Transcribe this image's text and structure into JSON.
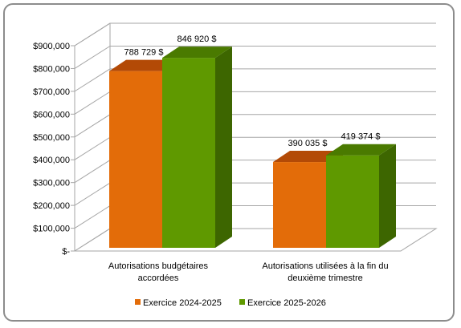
{
  "chart_data": {
    "type": "bar",
    "categories": [
      [
        "Autorisations budgétaires",
        "accordées"
      ],
      [
        "Autorisations utilisées à la fin du",
        "deuxième trimestre"
      ]
    ],
    "series": [
      {
        "name": "Exercice 2024-2025",
        "values": [
          788729,
          390035
        ],
        "labels": [
          "788 729 $",
          "390 035 $"
        ],
        "front": "#e36c09",
        "top": "#b34a06",
        "side": "#a34304"
      },
      {
        "name": "Exercice 2025-2026",
        "values": [
          846920,
          419374
        ],
        "labels": [
          "846 920 $",
          "419 374 $"
        ],
        "front": "#5f9900",
        "top": "#4a7a00",
        "side": "#3d6600"
      }
    ],
    "yticks": [
      0,
      100000,
      200000,
      300000,
      400000,
      500000,
      600000,
      700000,
      800000,
      900000
    ],
    "ytick_labels": [
      "$-",
      "$100,000",
      "$200,000",
      "$300,000",
      "$400,000",
      "$500,000",
      "$600,000",
      "$700,000",
      "$800,000",
      "$900,000"
    ],
    "ylim": [
      0,
      900000
    ],
    "grid": true,
    "legend_position": "bottom",
    "three_d": true
  }
}
